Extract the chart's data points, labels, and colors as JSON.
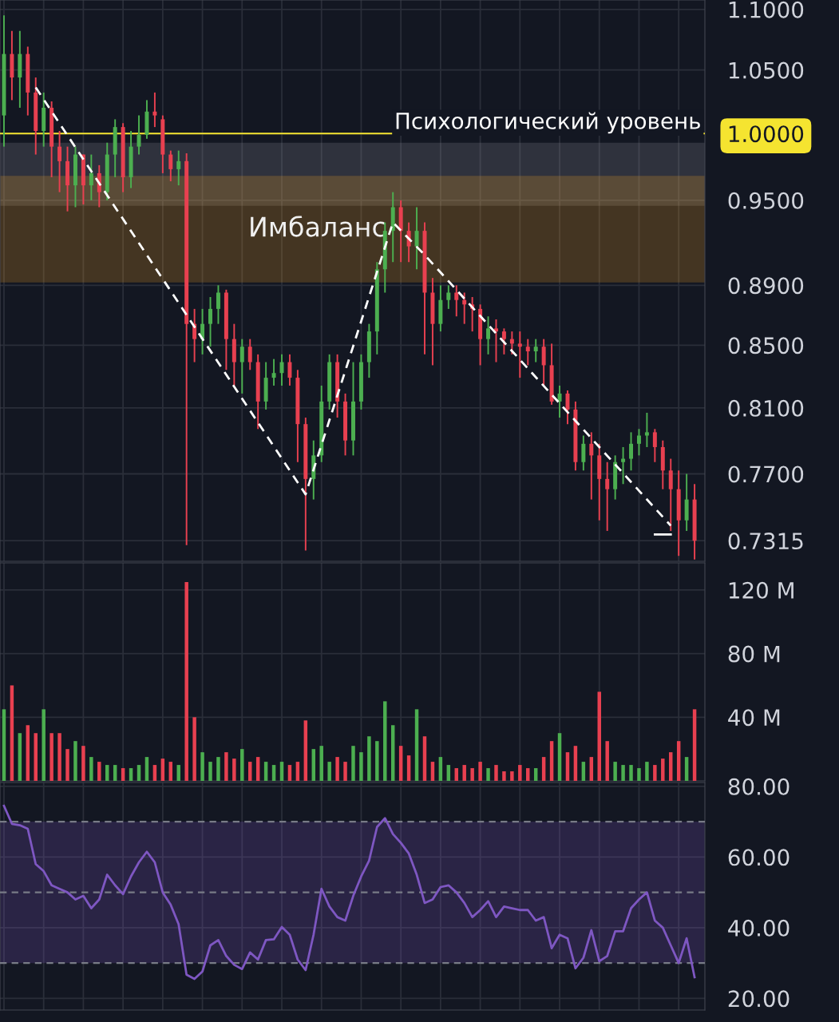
{
  "chart_data": [
    {
      "type": "candlestick",
      "categories": [
        null,
        null,
        null,
        null,
        null,
        null,
        null,
        null,
        null,
        null,
        null,
        null,
        null,
        null,
        null,
        null,
        null,
        null,
        null,
        null,
        null,
        null,
        null,
        null,
        null,
        null,
        null,
        null,
        null,
        null,
        null,
        null,
        null,
        null,
        null,
        null,
        null,
        null,
        null,
        null,
        null,
        null,
        null,
        null,
        null,
        null,
        null,
        null,
        null,
        null,
        null,
        null,
        null,
        null,
        null,
        null,
        null,
        null,
        null,
        null,
        null,
        null,
        null,
        null,
        null,
        null,
        null,
        null,
        null,
        null,
        null,
        null,
        null,
        null,
        null,
        null,
        null,
        null,
        null,
        null,
        null,
        null,
        null,
        null,
        null,
        null,
        null,
        null
      ],
      "ohlc": [
        [
          1.014,
          1.095,
          0.99,
          1.063
        ],
        [
          1.063,
          1.082,
          1.026,
          1.044
        ],
        [
          1.044,
          1.082,
          1.02,
          1.063
        ],
        [
          1.063,
          1.069,
          1.014,
          1.032
        ],
        [
          1.032,
          1.044,
          0.984,
          1.002
        ],
        [
          1.002,
          1.032,
          0.99,
          1.02
        ],
        [
          1.02,
          1.025,
          0.967,
          0.99
        ],
        [
          0.99,
          1.002,
          0.956,
          0.979
        ],
        [
          0.979,
          0.99,
          0.942,
          0.961
        ],
        [
          0.961,
          0.99,
          0.945,
          0.984
        ],
        [
          0.984,
          0.984,
          0.947,
          0.961
        ],
        [
          0.961,
          0.984,
          0.95,
          0.97
        ],
        [
          0.97,
          0.976,
          0.945,
          0.956
        ],
        [
          0.956,
          0.993,
          0.95,
          0.984
        ],
        [
          0.984,
          1.011,
          0.967,
          1.005
        ],
        [
          1.005,
          1.008,
          0.956,
          0.967
        ],
        [
          0.967,
          1.002,
          0.959,
          0.99
        ],
        [
          0.99,
          1.014,
          0.984,
          0.999
        ],
        [
          0.999,
          1.026,
          0.996,
          1.017
        ],
        [
          1.017,
          1.032,
          1.005,
          1.014
        ],
        [
          1.011,
          1.014,
          0.97,
          0.984
        ],
        [
          0.984,
          0.987,
          0.964,
          0.973
        ],
        [
          0.973,
          0.987,
          0.961,
          0.979
        ],
        [
          0.979,
          0.985,
          0.729,
          0.864
        ],
        [
          0.864,
          0.874,
          0.839,
          0.854
        ],
        [
          0.854,
          0.874,
          0.844,
          0.864
        ],
        [
          0.864,
          0.882,
          0.849,
          0.874
        ],
        [
          0.874,
          0.89,
          0.864,
          0.885
        ],
        [
          0.885,
          0.887,
          0.834,
          0.854
        ],
        [
          0.854,
          0.864,
          0.824,
          0.839
        ],
        [
          0.839,
          0.854,
          0.819,
          0.849
        ],
        [
          0.849,
          0.854,
          0.834,
          0.839
        ],
        [
          0.839,
          0.844,
          0.797,
          0.814
        ],
        [
          0.814,
          0.839,
          0.809,
          0.829
        ],
        [
          0.829,
          0.841,
          0.824,
          0.832
        ],
        [
          0.832,
          0.844,
          0.824,
          0.839
        ],
        [
          0.839,
          0.844,
          0.824,
          0.829
        ],
        [
          0.829,
          0.834,
          0.777,
          0.8
        ],
        [
          0.8,
          0.804,
          0.726,
          0.767
        ],
        [
          0.767,
          0.79,
          0.755,
          0.781
        ],
        [
          0.781,
          0.824,
          0.777,
          0.814
        ],
        [
          0.814,
          0.844,
          0.809,
          0.839
        ],
        [
          0.839,
          0.844,
          0.804,
          0.814
        ],
        [
          0.814,
          0.819,
          0.781,
          0.79
        ],
        [
          0.79,
          0.839,
          0.781,
          0.814
        ],
        [
          0.814,
          0.844,
          0.809,
          0.839
        ],
        [
          0.839,
          0.864,
          0.829,
          0.859
        ],
        [
          0.859,
          0.906,
          0.844,
          0.901
        ],
        [
          0.901,
          0.934,
          0.885,
          0.928
        ],
        [
          0.928,
          0.956,
          0.906,
          0.945
        ],
        [
          0.945,
          0.95,
          0.906,
          0.928
        ],
        [
          0.928,
          0.934,
          0.906,
          0.917
        ],
        [
          0.917,
          0.945,
          0.901,
          0.928
        ],
        [
          0.928,
          0.934,
          0.844,
          0.885
        ],
        [
          0.885,
          0.895,
          0.837,
          0.864
        ],
        [
          0.864,
          0.89,
          0.859,
          0.88
        ],
        [
          0.88,
          0.89,
          0.874,
          0.885
        ],
        [
          0.885,
          0.89,
          0.869,
          0.88
        ],
        [
          0.88,
          0.885,
          0.864,
          0.877
        ],
        [
          0.877,
          0.882,
          0.859,
          0.874
        ],
        [
          0.874,
          0.877,
          0.837,
          0.854
        ],
        [
          0.854,
          0.869,
          0.844,
          0.861
        ],
        [
          0.861,
          0.867,
          0.839,
          0.859
        ],
        [
          0.859,
          0.861,
          0.844,
          0.854
        ],
        [
          0.854,
          0.859,
          0.844,
          0.851
        ],
        [
          0.851,
          0.859,
          0.829,
          0.849
        ],
        [
          0.849,
          0.854,
          0.837,
          0.846
        ],
        [
          0.846,
          0.854,
          0.839,
          0.849
        ],
        [
          0.849,
          0.854,
          0.824,
          0.837
        ],
        [
          0.837,
          0.851,
          0.812,
          0.814
        ],
        [
          0.814,
          0.824,
          0.804,
          0.819
        ],
        [
          0.819,
          0.821,
          0.8,
          0.809
        ],
        [
          0.809,
          0.814,
          0.772,
          0.777
        ],
        [
          0.777,
          0.793,
          0.772,
          0.788
        ],
        [
          0.788,
          0.795,
          0.755,
          0.781
        ],
        [
          0.781,
          0.788,
          0.743,
          0.767
        ],
        [
          0.767,
          0.777,
          0.737,
          0.761
        ],
        [
          0.761,
          0.781,
          0.755,
          0.777
        ],
        [
          0.777,
          0.786,
          0.764,
          0.779
        ],
        [
          0.779,
          0.795,
          0.772,
          0.788
        ],
        [
          0.788,
          0.797,
          0.781,
          0.793
        ],
        [
          0.793,
          0.807,
          0.786,
          0.795
        ],
        [
          0.795,
          0.797,
          0.777,
          0.786
        ],
        [
          0.786,
          0.79,
          0.761,
          0.772
        ],
        [
          0.772,
          0.779,
          0.737,
          0.761
        ],
        [
          0.761,
          0.772,
          0.723,
          0.743
        ],
        [
          0.743,
          0.77,
          0.737,
          0.755
        ],
        [
          0.755,
          0.764,
          0.721,
          0.7315
        ]
      ],
      "colors": [
        "#4caf50",
        "#e84050",
        "#4caf50",
        "#e84050",
        "#e84050",
        "#4caf50",
        "#e84050",
        "#e84050",
        "#e84050",
        "#4caf50",
        "#e84050",
        "#4caf50",
        "#e84050",
        "#4caf50",
        "#4caf50",
        "#e84050",
        "#4caf50",
        "#4caf50",
        "#4caf50",
        "#e84050",
        "#e84050",
        "#e84050",
        "#4caf50",
        "#e84050",
        "#e84050",
        "#4caf50",
        "#4caf50",
        "#4caf50",
        "#e84050",
        "#e84050",
        "#4caf50",
        "#e84050",
        "#e84050",
        "#4caf50",
        "#4caf50",
        "#4caf50",
        "#e84050",
        "#e84050",
        "#e84050",
        "#4caf50",
        "#4caf50",
        "#4caf50",
        "#e84050",
        "#e84050",
        "#4caf50",
        "#4caf50",
        "#4caf50",
        "#4caf50",
        "#4caf50",
        "#4caf50",
        "#e84050",
        "#e84050",
        "#4caf50",
        "#e84050",
        "#e84050",
        "#4caf50",
        "#4caf50",
        "#e84050",
        "#e84050",
        "#e84050",
        "#e84050",
        "#4caf50",
        "#e84050",
        "#e84050",
        "#e84050",
        "#e84050",
        "#e84050",
        "#4caf50",
        "#e84050",
        "#e84050",
        "#4caf50",
        "#e84050",
        "#e84050",
        "#4caf50",
        "#e84050",
        "#e84050",
        "#e84050",
        "#4caf50",
        "#4caf50",
        "#4caf50",
        "#4caf50",
        "#4caf50",
        "#e84050",
        "#e84050",
        "#e84050",
        "#e84050",
        "#4caf50",
        "#e84050"
      ],
      "series": [
        {
          "type": "line",
          "values": [
            null,
            null,
            null,
            null,
            1.036,
            null,
            null,
            null,
            null,
            null,
            null,
            null,
            null,
            null,
            null,
            null,
            null,
            null,
            null,
            null,
            null,
            null,
            null,
            null,
            null,
            null,
            null,
            null,
            null,
            null,
            null,
            null,
            null,
            null,
            null,
            null,
            null,
            null,
            0.758,
            null,
            null,
            null,
            null,
            null,
            null,
            null,
            null,
            null,
            null,
            0.934,
            null,
            null,
            null,
            0.911,
            null,
            null,
            null,
            null,
            null,
            null,
            null,
            null,
            null,
            null,
            null,
            null,
            null,
            null,
            null,
            null,
            null,
            null,
            null,
            null,
            null,
            null,
            null,
            null,
            null,
            null,
            null,
            null,
            null,
            null,
            0.74,
            null,
            null,
            null
          ],
          "color": "#ffffff",
          "line_style": "dashed"
        },
        {
          "type": "line",
          "values": [
            null,
            null,
            null,
            null,
            null,
            null,
            null,
            null,
            null,
            null,
            null,
            null,
            null,
            null,
            null,
            null,
            null,
            null,
            null,
            null,
            null,
            null,
            null,
            null,
            null,
            null,
            null,
            null,
            null,
            null,
            null,
            null,
            null,
            null,
            null,
            null,
            null,
            null,
            null,
            null,
            null,
            null,
            null,
            null,
            null,
            null,
            null,
            null,
            null,
            null,
            null,
            null,
            null,
            null,
            null,
            null,
            null,
            null,
            null,
            null,
            null,
            null,
            null,
            null,
            null,
            null,
            null,
            null,
            null,
            null,
            null,
            null,
            null,
            null,
            null,
            null,
            null,
            null,
            null,
            null,
            null,
            null,
            0.735,
            null,
            0.735,
            null,
            null,
            null
          ],
          "color": "#ffffff",
          "line_style": "solid"
        }
      ],
      "log": true,
      "ylim": [
        0.72,
        1.108
      ],
      "yticks": [
        {
          "value": 0.7315,
          "label": "0.7315"
        },
        {
          "value": 0.77,
          "label": "0.7700"
        },
        {
          "value": 0.81,
          "label": "0.8100"
        },
        {
          "value": 0.85,
          "label": "0.8500"
        },
        {
          "value": 0.89,
          "label": "0.8900"
        },
        {
          "value": 0.95,
          "label": "0.9500"
        },
        {
          "value": 1.0,
          "label": "1.0000"
        },
        {
          "value": 1.05,
          "label": "1.0500"
        },
        {
          "value": 1.1,
          "label": "1.1000"
        }
      ],
      "ref_lines": [
        {
          "axis": "y",
          "value": 1.0,
          "label": "Психологический уровень",
          "color": "#f5e430",
          "line_style": "solid"
        }
      ],
      "bands": [
        {
          "axis": "y",
          "from": 0.946,
          "to": 0.993,
          "color": "#9598a1"
        },
        {
          "axis": "y",
          "from": 0.892,
          "to": 0.968,
          "label": "Имбаланс",
          "color": "#f5a623"
        }
      ],
      "grid": true,
      "tick_labels": "y"
    },
    {
      "type": "bar",
      "categories": [
        null,
        null,
        null,
        null,
        null,
        null,
        null,
        null,
        null,
        null,
        null,
        null,
        null,
        null,
        null,
        null,
        null,
        null,
        null,
        null,
        null,
        null,
        null,
        null,
        null,
        null,
        null,
        null,
        null,
        null,
        null,
        null,
        null,
        null,
        null,
        null,
        null,
        null,
        null,
        null,
        null,
        null,
        null,
        null,
        null,
        null,
        null,
        null,
        null,
        null,
        null,
        null,
        null,
        null,
        null,
        null,
        null,
        null,
        null,
        null,
        null,
        null,
        null,
        null,
        null,
        null,
        null,
        null,
        null,
        null,
        null,
        null,
        null,
        null,
        null,
        null,
        null,
        null,
        null,
        null,
        null,
        null,
        null,
        null,
        null,
        null,
        null,
        null
      ],
      "values": [
        45,
        60,
        30,
        35,
        30,
        45,
        30,
        30,
        20,
        25,
        22,
        15,
        12,
        10,
        10,
        8,
        8,
        10,
        15,
        10,
        14,
        12,
        10,
        125,
        40,
        18,
        12,
        15,
        18,
        14,
        20,
        12,
        15,
        12,
        10,
        12,
        10,
        12,
        38,
        20,
        22,
        12,
        15,
        12,
        22,
        18,
        28,
        25,
        50,
        35,
        22,
        16,
        45,
        28,
        12,
        15,
        10,
        8,
        10,
        8,
        12,
        8,
        10,
        6,
        6,
        10,
        8,
        8,
        15,
        25,
        30,
        18,
        22,
        12,
        15,
        56,
        25,
        12,
        10,
        10,
        8,
        12,
        10,
        14,
        18,
        25,
        15,
        45
      ],
      "colors": [
        "#4caf50",
        "#e84050",
        "#4caf50",
        "#e84050",
        "#e84050",
        "#4caf50",
        "#e84050",
        "#e84050",
        "#e84050",
        "#4caf50",
        "#e84050",
        "#4caf50",
        "#e84050",
        "#4caf50",
        "#4caf50",
        "#e84050",
        "#4caf50",
        "#4caf50",
        "#4caf50",
        "#e84050",
        "#e84050",
        "#e84050",
        "#4caf50",
        "#e84050",
        "#e84050",
        "#4caf50",
        "#4caf50",
        "#4caf50",
        "#e84050",
        "#e84050",
        "#4caf50",
        "#e84050",
        "#e84050",
        "#4caf50",
        "#4caf50",
        "#4caf50",
        "#e84050",
        "#e84050",
        "#e84050",
        "#4caf50",
        "#4caf50",
        "#4caf50",
        "#e84050",
        "#e84050",
        "#4caf50",
        "#4caf50",
        "#4caf50",
        "#4caf50",
        "#4caf50",
        "#4caf50",
        "#e84050",
        "#e84050",
        "#4caf50",
        "#e84050",
        "#e84050",
        "#4caf50",
        "#4caf50",
        "#e84050",
        "#e84050",
        "#e84050",
        "#e84050",
        "#4caf50",
        "#e84050",
        "#e84050",
        "#e84050",
        "#e84050",
        "#e84050",
        "#4caf50",
        "#e84050",
        "#e84050",
        "#4caf50",
        "#e84050",
        "#e84050",
        "#4caf50",
        "#e84050",
        "#e84050",
        "#e84050",
        "#4caf50",
        "#4caf50",
        "#4caf50",
        "#4caf50",
        "#4caf50",
        "#e84050",
        "#e84050",
        "#e84050",
        "#e84050",
        "#4caf50",
        "#e84050"
      ],
      "ylim": [
        0,
        137
      ],
      "yticks": [
        {
          "value": 40,
          "label": "40 M"
        },
        {
          "value": 80,
          "label": "80 M"
        },
        {
          "value": 120,
          "label": "120 M"
        }
      ],
      "grid": true,
      "tick_labels": "y"
    },
    {
      "type": "line",
      "categories": [
        null,
        null,
        null,
        null,
        null,
        null,
        null,
        null,
        null,
        null,
        null,
        null,
        null,
        null,
        null,
        null,
        null,
        null,
        null,
        null,
        null,
        null,
        null,
        null,
        null,
        null,
        null,
        null,
        null,
        null,
        null,
        null,
        null,
        null,
        null,
        null,
        null,
        null,
        null,
        null,
        null,
        null,
        null,
        null,
        null,
        null,
        null,
        null,
        null,
        null,
        null,
        null,
        null,
        null,
        null,
        null,
        null,
        null,
        null,
        null,
        null,
        null,
        null,
        null,
        null,
        null,
        null,
        null,
        null,
        null,
        null,
        null,
        null,
        null,
        null,
        null,
        null,
        null,
        null,
        null,
        null,
        null,
        null,
        null,
        null,
        null,
        null,
        null
      ],
      "series": [
        {
          "color": "#7e57c2",
          "values": [
            74.5,
            69.4,
            69,
            68,
            58,
            56,
            52,
            51,
            50,
            48,
            49,
            45.5,
            48,
            55,
            52,
            49.5,
            54.5,
            58.5,
            61.5,
            58.5,
            50,
            46.5,
            41,
            26.7,
            25.5,
            27.6,
            35,
            36.5,
            32,
            29.5,
            28.3,
            33,
            31,
            36.5,
            36.7,
            40.2,
            38,
            31,
            28,
            38,
            51,
            46,
            43,
            42,
            49,
            54.5,
            59,
            68.5,
            71,
            66.5,
            64,
            61,
            55,
            47,
            48,
            51.5,
            52,
            50,
            47,
            43,
            45,
            47.5,
            43,
            46,
            45.5,
            45,
            45,
            42,
            43,
            34.2,
            38,
            37,
            28.5,
            31.5,
            39.3,
            30.5,
            32,
            39,
            39,
            45.5,
            48,
            50,
            42,
            40,
            35,
            30,
            37,
            26
          ]
        }
      ],
      "ylim": [
        16.7,
        81.1
      ],
      "yticks": [
        {
          "value": 20,
          "label": "20.00"
        },
        {
          "value": 40,
          "label": "40.00"
        },
        {
          "value": 60,
          "label": "60.00"
        },
        {
          "value": 80,
          "label": "80.00"
        }
      ],
      "ref_lines": [
        {
          "axis": "y",
          "value": 30,
          "color": "#787b86",
          "line_style": "dashed"
        },
        {
          "axis": "y",
          "value": 50,
          "color": "#787b86",
          "line_style": "dashed"
        },
        {
          "axis": "y",
          "value": 70,
          "color": "#787b86",
          "line_style": "dashed"
        }
      ],
      "bands": [
        {
          "axis": "y",
          "from": 30,
          "to": 70,
          "color": "#7e57c2"
        }
      ],
      "grid": true,
      "tick_labels": "y"
    }
  ]
}
